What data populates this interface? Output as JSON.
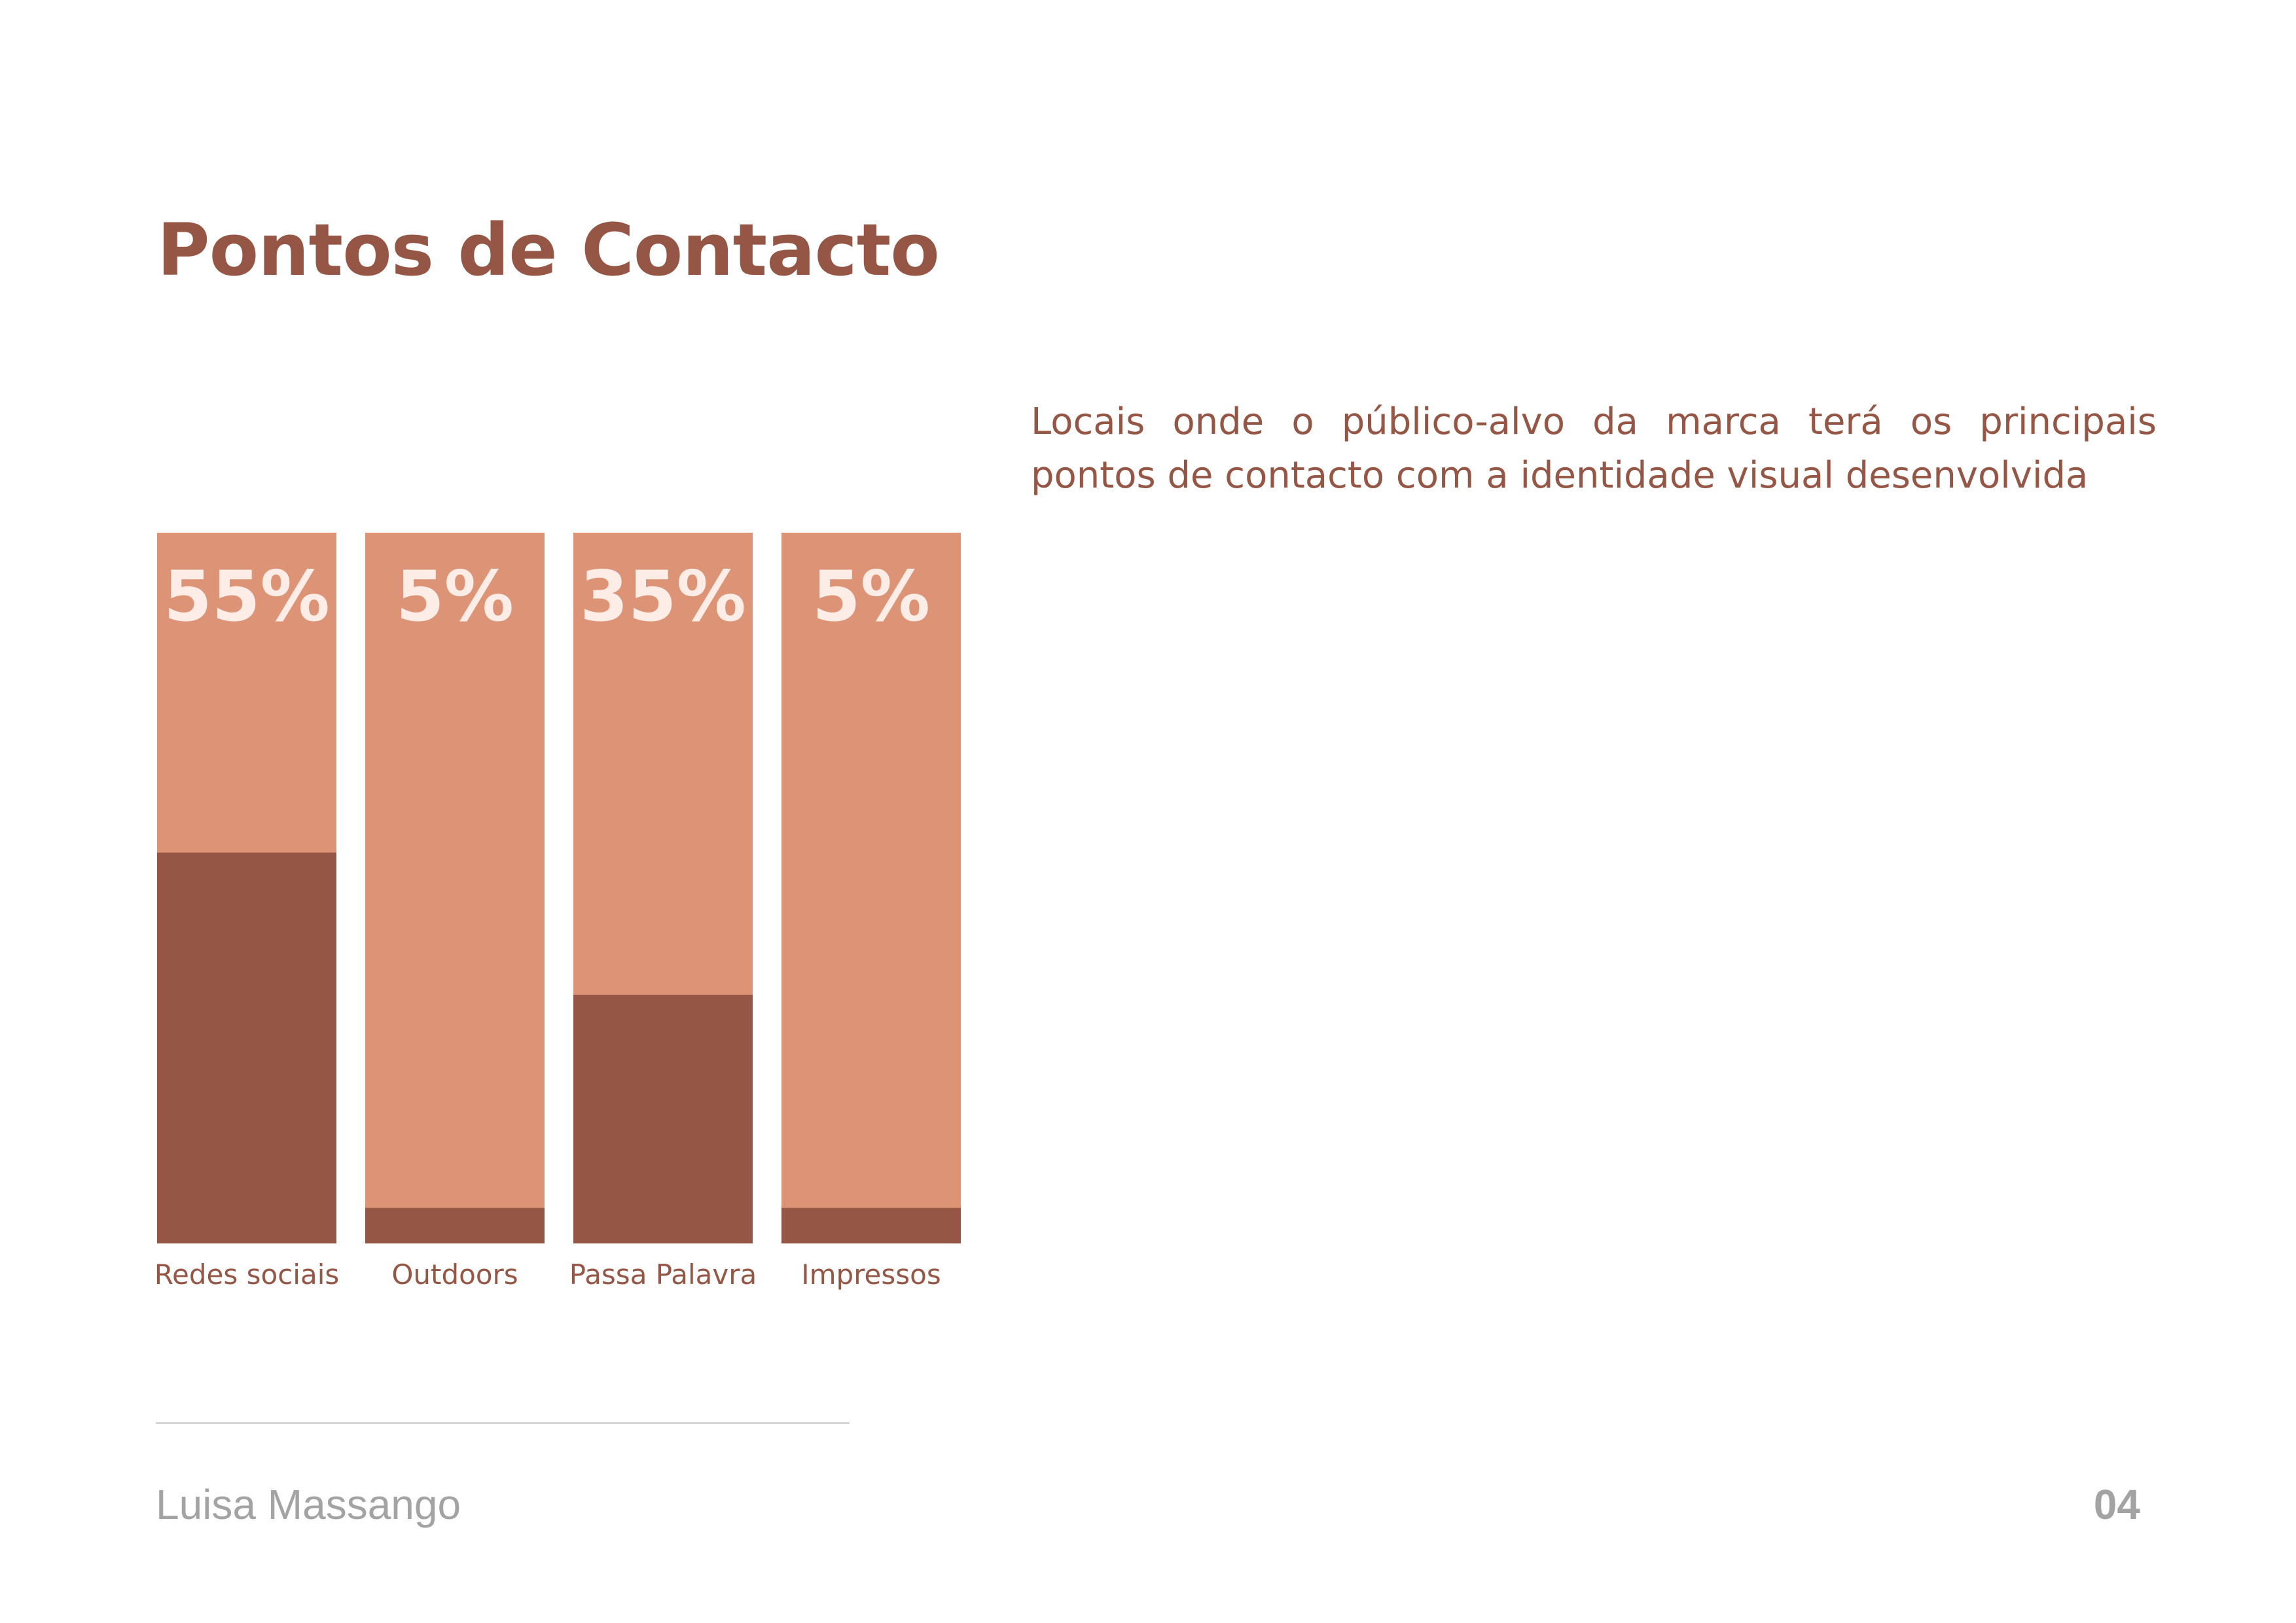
{
  "page": {
    "title": "Pontos de Contacto",
    "description": "Locais onde o público-alvo da marca terá os principais pontos de contacto com a identidade visual desenvolvida"
  },
  "colors": {
    "background": "#FFFFFF",
    "text_accent": "#955645",
    "bar_light": "#DD9476",
    "bar_dark": "#955645",
    "value_label": "#FDEDE6",
    "footer_text": "#A3A3A3",
    "footer_rule": "#D5D5D5"
  },
  "chart_data": {
    "type": "bar",
    "categories": [
      "Redes sociais",
      "Outdoors",
      "Passa Palavra",
      "Impressos"
    ],
    "values": [
      55,
      5,
      35,
      5
    ],
    "value_labels": [
      "55%",
      "5%",
      "35%",
      "5%"
    ],
    "unit": "%",
    "legend": "none",
    "grid": false
  },
  "footer": {
    "author": "Luisa Massango",
    "page_number": "04"
  }
}
